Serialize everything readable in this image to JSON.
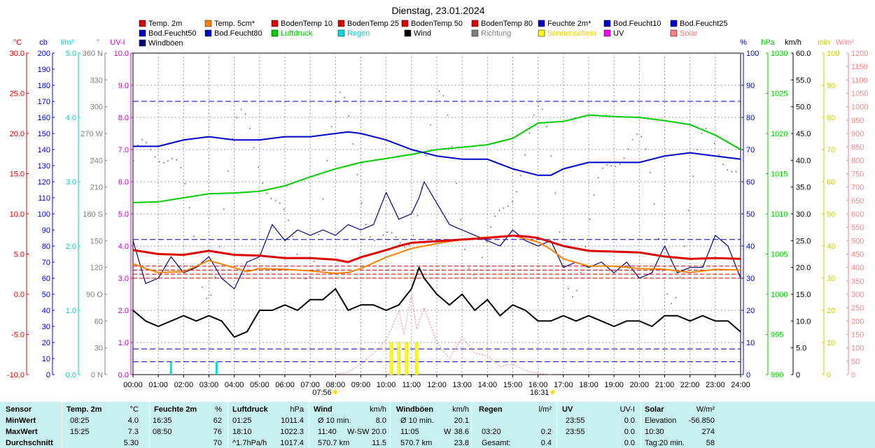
{
  "title": "Dienstag, 23.01.2024",
  "legend": [
    {
      "label": "Temp. 2m",
      "color": "#dd0000"
    },
    {
      "label": "Temp. 5cm*",
      "color": "#ff8000"
    },
    {
      "label": "BodenTemp 10",
      "color": "#dd0000"
    },
    {
      "label": "BodenTemp 25",
      "color": "#dd0000"
    },
    {
      "label": "BodenTemp 50",
      "color": "#dd0000"
    },
    {
      "label": "BodenTemp 80",
      "color": "#dd0000"
    },
    {
      "label": "Feuchte 2m*",
      "color": "#0000cc"
    },
    {
      "label": "Bod.Feucht10",
      "color": "#0000cc"
    },
    {
      "label": "Bod.Feucht25",
      "color": "#0000cc"
    },
    {
      "label": "Bod.Feucht50",
      "color": "#0000cc"
    },
    {
      "label": "Bod.Feucht80",
      "color": "#0000cc"
    },
    {
      "label": "Luftdruck",
      "color": "#00cc00"
    },
    {
      "label": "Regen",
      "color": "#00dddd"
    },
    {
      "label": "Wind",
      "color": "#000000"
    },
    {
      "label": "Richtung",
      "color": "#808080"
    },
    {
      "label": "Sonnenschein",
      "color": "#ffff00"
    },
    {
      "label": "UV",
      "color": "#ff00ff"
    },
    {
      "label": "Solar",
      "color": "#ff8080"
    },
    {
      "label": "Windböen",
      "color": "#000080"
    }
  ],
  "chart_data": {
    "type": "line",
    "title": "Dienstag, 23.01.2024",
    "x_unit": "time",
    "x_ticks": [
      "00:00",
      "01:00",
      "02:00",
      "03:00",
      "04:00",
      "05:00",
      "06:00",
      "07:00",
      "08:00",
      "09:00",
      "10:00",
      "11:00",
      "12:00",
      "13:00",
      "14:00",
      "15:00",
      "16:00",
      "17:00",
      "18:00",
      "19:00",
      "20:00",
      "21:00",
      "22:00",
      "23:00",
      "24:00"
    ],
    "sunrise": "07:56",
    "sunset": "16:31",
    "axes": [
      {
        "id": "temp",
        "unit": "°C",
        "color": "#dd0000",
        "ticks": [
          "30.0",
          "25.0",
          "20.0",
          "15.0",
          "10.0",
          "5.0",
          "0.0",
          "-5.0",
          "-10.0"
        ],
        "range": [
          -10,
          30
        ]
      },
      {
        "id": "cb",
        "unit": "cb",
        "color": "#0000cc",
        "ticks": [
          "200",
          "190",
          "180",
          "170",
          "160",
          "150",
          "140",
          "130",
          "120",
          "110",
          "100",
          "90",
          "80",
          "70",
          "60",
          "50",
          "40",
          "30",
          "20",
          "10",
          "0"
        ],
        "range": [
          0,
          200
        ]
      },
      {
        "id": "rain",
        "unit": "l/m²",
        "color": "#00cccc",
        "ticks": [
          "5.0",
          "4.0",
          "3.0",
          "2.0",
          "1.0",
          "0.0"
        ],
        "range": [
          0,
          5
        ]
      },
      {
        "id": "dir",
        "unit": "°",
        "color": "#808080",
        "ticks": [
          "360 N",
          "330",
          "300",
          "270 W",
          "240",
          "210",
          "180 S",
          "150",
          "120",
          "90 O",
          "60",
          "30",
          "0 N"
        ],
        "range": [
          0,
          360
        ]
      },
      {
        "id": "uv",
        "unit": "UV-I",
        "color": "#cc00cc",
        "ticks": [
          "10.0",
          "9.0",
          "8.0",
          "7.0",
          "6.0",
          "5.0",
          "4.0",
          "3.0",
          "2.0",
          "1.0",
          "0.0"
        ],
        "range": [
          0,
          10
        ]
      },
      {
        "id": "hum",
        "unit": "%",
        "color": "#0000cc",
        "ticks": [
          "100",
          "90",
          "80",
          "70",
          "60",
          "50",
          "40",
          "30",
          "20",
          "10",
          "0"
        ],
        "range": [
          0,
          100
        ]
      },
      {
        "id": "press",
        "unit": "hPa",
        "color": "#00cc00",
        "ticks": [
          "1030",
          "1025",
          "1020",
          "1015",
          "1010",
          "1005",
          "1000",
          "995",
          "990"
        ],
        "range": [
          990,
          1030
        ]
      },
      {
        "id": "wind",
        "unit": "km/h",
        "color": "#000000",
        "ticks": [
          "60.0",
          "55.0",
          "50.0",
          "45.0",
          "40.0",
          "35.0",
          "30.0",
          "25.0",
          "20.0",
          "15.0",
          "10.0",
          "5.0",
          "0"
        ],
        "range": [
          0,
          60
        ]
      },
      {
        "id": "min",
        "unit": "min",
        "color": "#cccc00",
        "ticks": [
          "100",
          "90",
          "80",
          "70",
          "60",
          "50",
          "40",
          "30",
          "20",
          "10",
          "0"
        ],
        "range": [
          0,
          100
        ]
      },
      {
        "id": "solar",
        "unit": "W/m²",
        "color": "#ff8080",
        "ticks": [
          "1200",
          "1150",
          "1100",
          "1050",
          "1000",
          "950",
          "900",
          "850",
          "800",
          "750",
          "700",
          "650",
          "600",
          "550",
          "500",
          "450",
          "400",
          "350",
          "300",
          "250",
          "200",
          "150",
          "100",
          "50",
          "0"
        ],
        "range": [
          0,
          1200
        ]
      }
    ],
    "series": [
      {
        "name": "Temp. 2m",
        "axis": "temp",
        "color": "#dd0000",
        "x": [
          0,
          1,
          2,
          3,
          4,
          5,
          6,
          7,
          8,
          8.5,
          9,
          10,
          10.5,
          11,
          12,
          13,
          14,
          15,
          15.5,
          16,
          17,
          18,
          19,
          20,
          21,
          22,
          23,
          24
        ],
        "y": [
          5.5,
          5.0,
          4.9,
          5.4,
          4.9,
          4.8,
          4.5,
          4.5,
          4.3,
          4.0,
          4.6,
          5.5,
          6.0,
          6.4,
          6.6,
          6.8,
          7.0,
          7.3,
          7.2,
          7.0,
          6.0,
          5.4,
          5.3,
          5.2,
          4.7,
          4.4,
          4.5,
          4.4
        ]
      },
      {
        "name": "Temp. 5cm*",
        "axis": "temp",
        "color": "#ff8000",
        "x": [
          0,
          0.5,
          1,
          2,
          3,
          4,
          4.5,
          5,
          6,
          7,
          8,
          8.5,
          9,
          10,
          11,
          12,
          13,
          14,
          15,
          16,
          16.5,
          17,
          18,
          19,
          20,
          21,
          22,
          23,
          24
        ],
        "y": [
          3.8,
          3.2,
          2.7,
          2.8,
          4.2,
          3.3,
          2.8,
          3.2,
          3.1,
          2.9,
          2.6,
          2.7,
          3.2,
          4.6,
          5.7,
          6.3,
          6.8,
          7.1,
          7.3,
          6.5,
          5.6,
          4.4,
          3.5,
          3.5,
          3.2,
          3.1,
          2.7,
          3.1,
          3.0
        ]
      },
      {
        "name": "Feuchte 2m*",
        "axis": "hum",
        "color": "#0000cc",
        "x": [
          0,
          1,
          2,
          3,
          4,
          5,
          6,
          7,
          8,
          8.5,
          9,
          10,
          11,
          12,
          13,
          14,
          15,
          16,
          16.5,
          17,
          18,
          19,
          20,
          21,
          22,
          23,
          24
        ],
        "y": [
          71,
          71,
          73,
          74,
          73,
          73,
          74,
          74,
          75,
          75.5,
          75,
          73,
          70,
          68,
          67,
          67,
          64,
          62,
          62,
          64,
          66,
          66,
          66,
          68,
          69,
          68,
          67
        ]
      },
      {
        "name": "Luftdruck",
        "axis": "press",
        "color": "#00cc00",
        "x": [
          0,
          1,
          2,
          3,
          4,
          5,
          6,
          7,
          8,
          9,
          10,
          11,
          12,
          13,
          14,
          15,
          16,
          17,
          18,
          19,
          20,
          21,
          22,
          23,
          24
        ],
        "y": [
          1011.4,
          1011.5,
          1012.0,
          1012.5,
          1012.6,
          1012.8,
          1013.5,
          1014.6,
          1015.6,
          1016.4,
          1016.9,
          1017.4,
          1018.0,
          1018.3,
          1018.6,
          1019.4,
          1021.3,
          1021.5,
          1022.3,
          1022.1,
          1022.0,
          1021.6,
          1021.1,
          1019.8,
          1018.0
        ]
      },
      {
        "name": "Wind",
        "axis": "wind",
        "color": "#000000",
        "x": [
          0,
          0.5,
          1,
          1.5,
          2,
          2.5,
          3,
          3.5,
          4,
          4.5,
          5,
          5.5,
          6,
          6.5,
          7,
          7.5,
          8,
          8.5,
          9,
          9.5,
          10,
          10.5,
          11,
          11.3,
          11.5,
          12,
          12.5,
          13,
          13.5,
          14,
          14.5,
          15,
          15.5,
          16,
          16.5,
          17,
          17.5,
          18,
          18.5,
          19,
          19.5,
          20,
          20.5,
          21,
          21.5,
          22,
          22.5,
          23,
          23.5,
          24
        ],
        "y": [
          12,
          10,
          9,
          10,
          11,
          10,
          11,
          10,
          7,
          8,
          12,
          12,
          13,
          12,
          14,
          14,
          16,
          12,
          13,
          13,
          12,
          13,
          16,
          20,
          18,
          15,
          13,
          15,
          12,
          14,
          11,
          13,
          12,
          10,
          10,
          11,
          10,
          11,
          10,
          9,
          10,
          10,
          9,
          11,
          11,
          10,
          11,
          10,
          10,
          8
        ]
      },
      {
        "name": "Windböen",
        "axis": "wind",
        "color": "#000080",
        "x": [
          0,
          0.5,
          1,
          1.5,
          2,
          2.5,
          3,
          3.5,
          4,
          4.5,
          5,
          5.5,
          6,
          6.5,
          7,
          7.5,
          8,
          8.5,
          9,
          9.5,
          10,
          10.5,
          11,
          11.3,
          11.5,
          12,
          12.5,
          13,
          13.5,
          14,
          14.5,
          15,
          15.5,
          16,
          16.5,
          17,
          17.5,
          18,
          18.5,
          19,
          19.5,
          20,
          20.5,
          21,
          21.5,
          22,
          22.5,
          23,
          23.5,
          24
        ],
        "y": [
          25,
          17,
          18,
          22,
          19,
          20,
          22,
          18,
          16,
          21,
          22,
          28,
          25,
          27,
          26,
          27,
          26,
          28,
          27,
          28,
          34,
          29,
          30,
          33,
          36,
          32,
          28,
          27,
          26,
          25,
          24,
          27,
          25,
          24,
          25,
          20,
          21,
          20,
          21,
          19,
          21,
          18,
          19,
          24,
          19,
          20,
          20,
          26,
          24,
          18
        ]
      },
      {
        "name": "Solar",
        "axis": "solar",
        "color": "#ff8080",
        "x": [
          7.93,
          8.5,
          9,
          9.5,
          10,
          10.2,
          10.5,
          10.7,
          11,
          11.2,
          11.5,
          12,
          12.5,
          13,
          13.5,
          14,
          14.5,
          15,
          15.5,
          16,
          16.52
        ],
        "y": [
          0,
          10,
          40,
          80,
          130,
          170,
          240,
          150,
          300,
          170,
          250,
          120,
          60,
          140,
          80,
          70,
          30,
          40,
          15,
          5,
          0
        ]
      }
    ],
    "rain_bars": [
      {
        "x": 1.5,
        "y": 0.2
      },
      {
        "x": 3.3,
        "y": 0.2
      }
    ],
    "sun_bars": [
      {
        "x": 10.2,
        "y": 10
      },
      {
        "x": 10.5,
        "y": 10
      },
      {
        "x": 10.8,
        "y": 10
      },
      {
        "x": 11.2,
        "y": 10
      }
    ],
    "soil_temps": [
      {
        "name": "BodenTemp 10",
        "axis": "temp",
        "y": 3.5
      },
      {
        "name": "BodenTemp 25",
        "axis": "temp",
        "y": 3.0
      },
      {
        "name": "BodenTemp 50",
        "axis": "temp",
        "y": 2.5
      },
      {
        "name": "BodenTemp 80",
        "axis": "temp",
        "y": 2.0
      }
    ],
    "soil_moist": [
      {
        "name": "Bod.Feucht10",
        "axis": "cb",
        "y": 170
      },
      {
        "name": "Bod.Feucht25",
        "axis": "cb",
        "y": 84
      },
      {
        "name": "Bod.Feucht50",
        "axis": "cb",
        "y": 16
      },
      {
        "name": "Bod.Feucht80",
        "axis": "cb",
        "y": 8
      }
    ]
  },
  "stats": {
    "headers": {
      "sensor": "Sensor",
      "temp": "Temp. 2m",
      "temp_u": "°C",
      "hum": "Feuchte 2m",
      "hum_u": "%",
      "press": "Luftdruck",
      "press_u": "hPa",
      "wind": "Wind",
      "wind_u": "km/h",
      "gust": "Windböen",
      "gust_u": "km/h",
      "rain": "Regen",
      "rain_u": "l/m²",
      "uv": "UV",
      "uv_u": "UV-I",
      "solar": "Solar",
      "solar_u": "W/m²"
    },
    "rows": [
      {
        "label": "MinWert",
        "temp_t": "08:25",
        "temp_v": "4.0",
        "hum_t": "16:35",
        "hum_v": "62",
        "press_t": "01:25",
        "press_v": "1011.4",
        "wind_t": "Ø 10 min.",
        "wind_v": "8.0",
        "gust_t": "Ø 10 min.",
        "gust_v": "20.1",
        "rain_t": "",
        "rain_v": "",
        "uv_t": "23:55",
        "uv_v": "0.0",
        "solar_t": "Elevation",
        "solar_v": "-56.850"
      },
      {
        "label": "MaxWert",
        "temp_t": "15:25",
        "temp_v": "7.3",
        "hum_t": "08:50",
        "hum_v": "76",
        "press_t": "18:10",
        "press_v": "1022.3",
        "wind_t": "11:40",
        "wind_d": "W-SW",
        "wind_v": "20.0",
        "gust_t": "11:05",
        "gust_d": "W",
        "gust_v": "38.6",
        "rain_t": "03:20",
        "rain_v": "0.2",
        "uv_t": "23:55",
        "uv_v": "0.0",
        "solar_t": "10:30",
        "solar_v": "274"
      },
      {
        "label": "Durchschnitt",
        "temp_t": "",
        "temp_v": "5.30",
        "hum_t": "",
        "hum_v": "70",
        "press_t": "^1.7hPa/h",
        "press_v": "1017.4",
        "wind_t": "570.7 km",
        "wind_v": "11.5",
        "gust_t": "570.7 km",
        "gust_v": "23.8",
        "rain_t": "Gesamt:",
        "rain_v": "0.4",
        "uv_t": "",
        "uv_v": "0.0",
        "solar_t": "Tag:20 min.",
        "solar_v": "58"
      }
    ]
  }
}
